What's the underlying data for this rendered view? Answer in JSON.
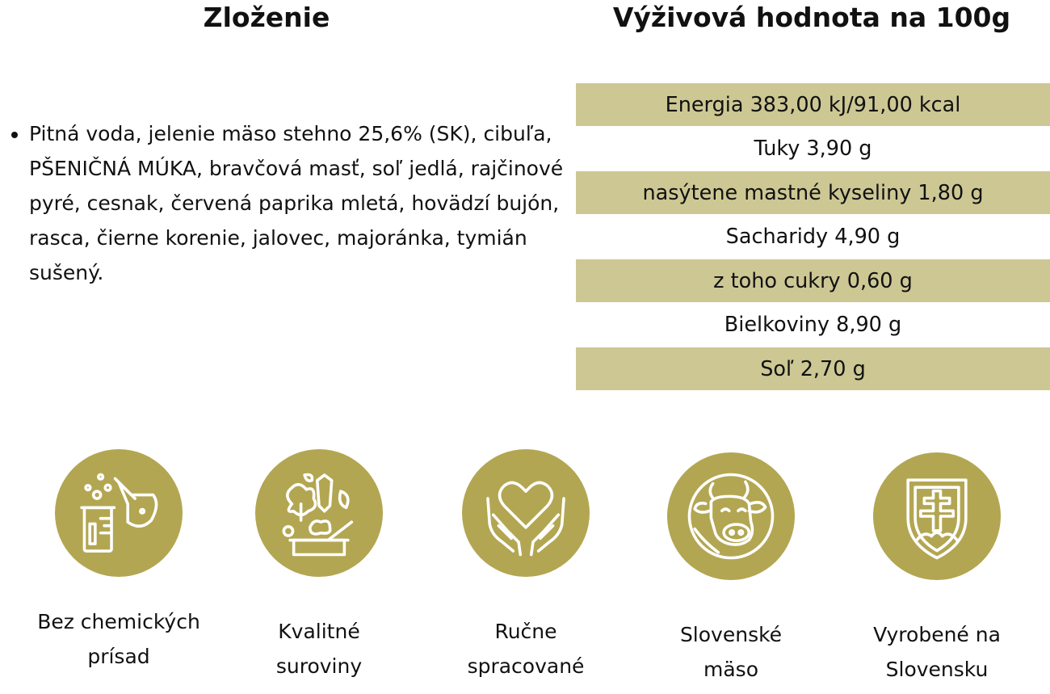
{
  "headings": {
    "composition": "Zloženie",
    "nutrition": "Výživová hodnota na 100g"
  },
  "ingredients": {
    "part1": "Pitná voda, jelenie mäso stehno 25,6% (SK), cibuľa, ",
    "allergen": "PŠENIČNÁ MÚKA",
    "part2": ", bravčová masť, soľ jedlá, rajčinové pyré, cesnak, červená paprika mletá, hovädzí bujón, rasca, čierne korenie, jalovec, majoránka, tymián sušený."
  },
  "nutrition_rows": [
    "Energia 383,00 kJ/91,00 kcal",
    "Tuky 3,90 g",
    "nasýtene mastné kyseliny 1,80 g",
    "Sacharidy 4,90 g",
    "z toho cukry 0,60 g",
    "Bielkoviny 8,90 g",
    "Soľ 2,70 g"
  ],
  "features": [
    {
      "icon": "chemistry-flask-icon",
      "line1": "Bez chemických",
      "line2": "prísad"
    },
    {
      "icon": "vegetables-ingredients-icon",
      "line1": "Kvalitné",
      "line2": "suroviny"
    },
    {
      "icon": "heart-hands-icon",
      "line1": "Ručne",
      "line2": "spracované"
    },
    {
      "icon": "cow-head-icon",
      "line1": "Slovenské",
      "line2": "mäso"
    },
    {
      "icon": "slovak-coat-of-arms-icon",
      "line1": "Vyrobené na",
      "line2": "Slovensku"
    }
  ],
  "colors": {
    "accent": "#b3a652",
    "row_shade": "#cdc794"
  }
}
